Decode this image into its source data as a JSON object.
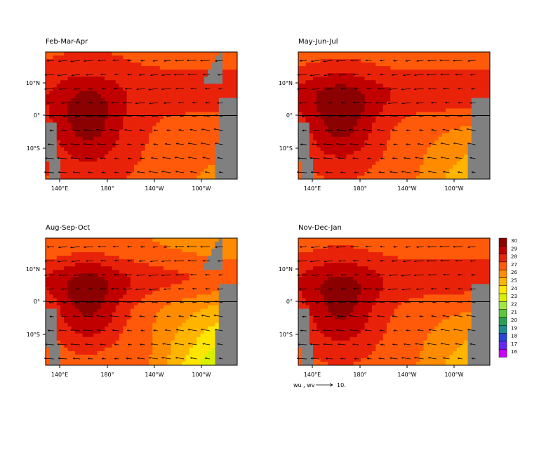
{
  "chart_data": {
    "type": "heatmap",
    "description_free": true,
    "panels": [
      {
        "title": "Feb-Mar-Apr"
      },
      {
        "title": "May-Jun-Jul"
      },
      {
        "title": "Aug-Sep-Oct"
      },
      {
        "title": "Nov-Dec-Jan"
      }
    ],
    "x_ticks": [
      "140°E",
      "180°",
      "140°W",
      "100°W"
    ],
    "y_ticks": [
      "10°N",
      "0°",
      "10°S"
    ],
    "colorbar": {
      "levels": [
        30,
        29,
        28,
        27,
        26,
        25,
        24,
        23,
        22,
        21,
        20,
        19,
        18,
        17,
        16
      ],
      "colors": [
        "#8b0000",
        "#c00000",
        "#e8230a",
        "#ff5a0a",
        "#ff8c00",
        "#ffb400",
        "#ffe600",
        "#d8f000",
        "#a0e640",
        "#5ac83c",
        "#28a050",
        "#1e8c8c",
        "#2846dc",
        "#6428ff",
        "#c800ff"
      ]
    },
    "vector_key": {
      "label": "wu , wv",
      "value": "10."
    },
    "land_color": "#808080"
  }
}
